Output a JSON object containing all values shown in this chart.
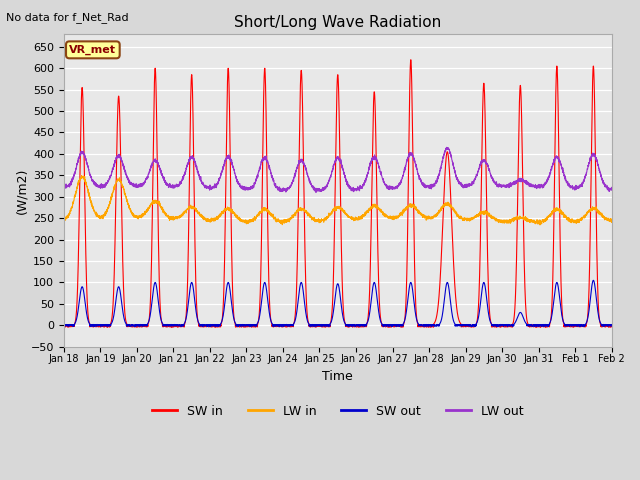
{
  "title": "Short/Long Wave Radiation",
  "xlabel": "Time",
  "ylabel": "(W/m2)",
  "top_left_text": "No data for f_Net_Rad",
  "legend_label_text": "VR_met",
  "ylim": [
    -50,
    680
  ],
  "yticks": [
    -50,
    0,
    50,
    100,
    150,
    200,
    250,
    300,
    350,
    400,
    450,
    500,
    550,
    600,
    650
  ],
  "series_colors": {
    "SW_in": "#ff0000",
    "LW_in": "#ffa500",
    "SW_out": "#0000cc",
    "LW_out": "#9933cc"
  },
  "legend_labels": [
    "SW in",
    "LW in",
    "SW out",
    "LW out"
  ],
  "bg_color": "#d8d8d8",
  "plot_bg": "#e8e8e8",
  "n_days": 15,
  "start_day": 18,
  "points_per_day": 288,
  "SW_in_peaks": [
    555,
    535,
    600,
    585,
    600,
    600,
    595,
    585,
    545,
    620,
    405,
    565,
    560,
    605,
    605
  ],
  "SW_in_widths": [
    0.065,
    0.07,
    0.06,
    0.06,
    0.06,
    0.06,
    0.065,
    0.065,
    0.065,
    0.06,
    0.12,
    0.065,
    0.065,
    0.06,
    0.06
  ],
  "LW_out_baseline": 320,
  "LW_out_peaks": [
    80,
    70,
    60,
    70,
    75,
    75,
    70,
    75,
    75,
    80,
    90,
    60,
    15,
    70,
    80
  ],
  "LW_in_baseline": 245,
  "LW_in_peaks_early": [
    100,
    90,
    40,
    30,
    30,
    30,
    30,
    30,
    30,
    30,
    35,
    20,
    10,
    30,
    30
  ],
  "SW_out_peaks": [
    90,
    90,
    100,
    100,
    100,
    100,
    100,
    97,
    100,
    100,
    100,
    100,
    30,
    100,
    105
  ]
}
